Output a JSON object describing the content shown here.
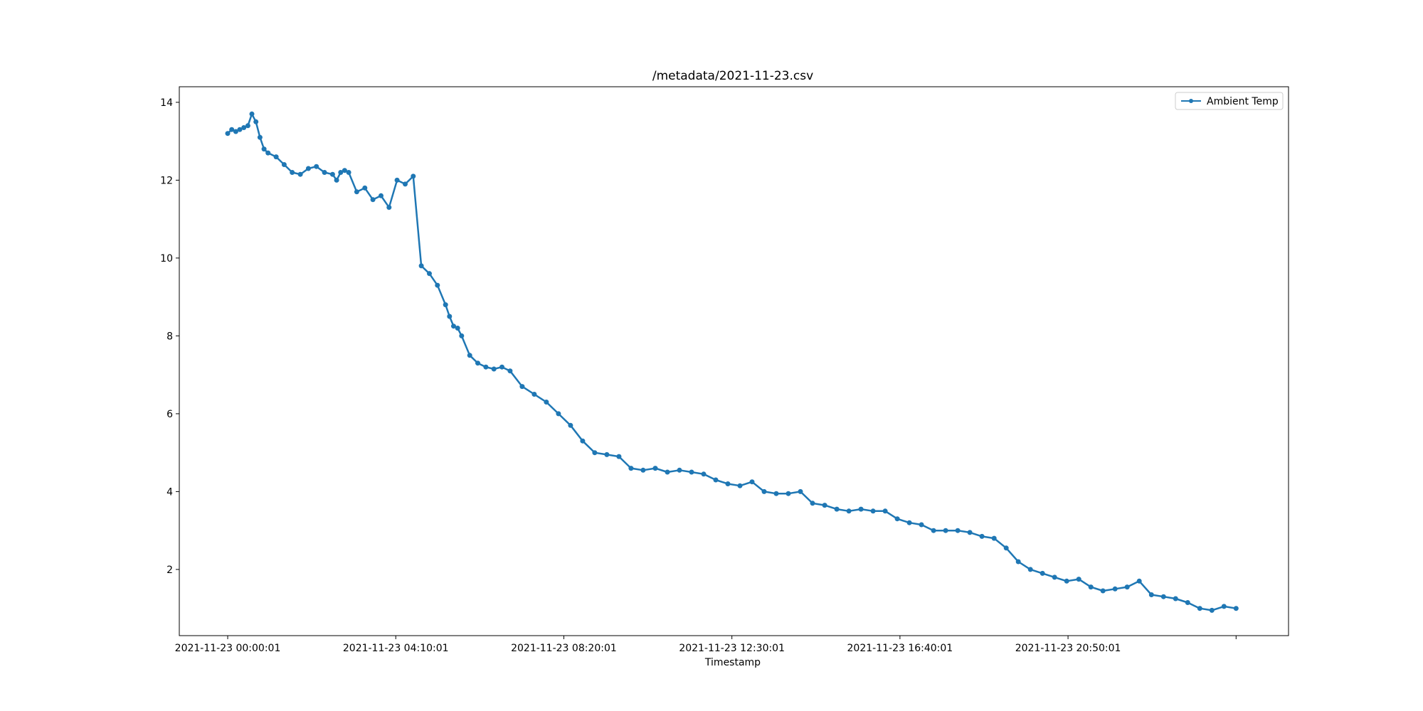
{
  "chart_data": {
    "type": "line",
    "title": "/metadata/2021-11-23.csv",
    "xlabel": "Timestamp",
    "ylabel": "",
    "x_tick_labels": [
      "2021-11-23 00:00:01",
      "2021-11-23 04:10:01",
      "2021-11-23 08:20:01",
      "2021-11-23 12:30:01",
      "2021-11-23 16:40:01",
      "2021-11-23 20:50:01"
    ],
    "y_ticks": [
      2,
      4,
      6,
      8,
      10,
      12,
      14
    ],
    "ylim": [
      0.3,
      14.4
    ],
    "xlim_hours": [
      -1.2,
      26.3
    ],
    "grid": false,
    "legend_position": "top-right",
    "colors": {
      "series": "#1f77b4"
    },
    "series": [
      {
        "name": "Ambient Temp",
        "marker": "dot",
        "x_hours": [
          0.0,
          0.1,
          0.2,
          0.3,
          0.4,
          0.5,
          0.6,
          0.7,
          0.8,
          0.9,
          1.0,
          1.2,
          1.4,
          1.6,
          1.8,
          2.0,
          2.2,
          2.4,
          2.6,
          2.7,
          2.8,
          2.9,
          3.0,
          3.2,
          3.4,
          3.6,
          3.8,
          4.0,
          4.2,
          4.4,
          4.6,
          4.8,
          5.0,
          5.2,
          5.4,
          5.5,
          5.6,
          5.7,
          5.8,
          6.0,
          6.2,
          6.4,
          6.6,
          6.8,
          7.0,
          7.3,
          7.6,
          7.9,
          8.2,
          8.5,
          8.8,
          9.1,
          9.4,
          9.7,
          10.0,
          10.3,
          10.6,
          10.9,
          11.2,
          11.5,
          11.8,
          12.1,
          12.4,
          12.7,
          13.0,
          13.3,
          13.6,
          13.9,
          14.2,
          14.5,
          14.8,
          15.1,
          15.4,
          15.7,
          16.0,
          16.3,
          16.6,
          16.9,
          17.2,
          17.5,
          17.8,
          18.1,
          18.4,
          18.7,
          19.0,
          19.3,
          19.6,
          19.9,
          20.2,
          20.5,
          20.8,
          21.1,
          21.4,
          21.7,
          22.0,
          22.3,
          22.6,
          22.9,
          23.2,
          23.5,
          23.8,
          24.1,
          24.4,
          24.7,
          25.0
        ],
        "y": [
          13.2,
          13.3,
          13.25,
          13.3,
          13.35,
          13.4,
          13.7,
          13.5,
          13.1,
          12.8,
          12.7,
          12.6,
          12.4,
          12.2,
          12.15,
          12.3,
          12.35,
          12.2,
          12.15,
          12.0,
          12.2,
          12.25,
          12.2,
          11.7,
          11.8,
          11.5,
          11.6,
          11.3,
          12.0,
          11.9,
          12.1,
          9.8,
          9.6,
          9.3,
          8.8,
          8.5,
          8.25,
          8.2,
          8.0,
          7.5,
          7.3,
          7.2,
          7.15,
          7.2,
          7.1,
          6.7,
          6.5,
          6.3,
          6.0,
          5.7,
          5.3,
          5.0,
          4.95,
          4.9,
          4.6,
          4.55,
          4.6,
          4.5,
          4.55,
          4.5,
          4.45,
          4.3,
          4.2,
          4.15,
          4.25,
          4.0,
          3.95,
          3.95,
          4.0,
          3.7,
          3.65,
          3.55,
          3.5,
          3.55,
          3.5,
          3.5,
          3.3,
          3.2,
          3.15,
          3.0,
          3.0,
          3.0,
          2.95,
          2.85,
          2.8,
          2.55,
          2.2,
          2.0,
          1.9,
          1.8,
          1.7,
          1.75,
          1.55,
          1.45,
          1.5,
          1.55,
          1.7,
          1.35,
          1.3,
          1.25,
          1.15,
          1.0,
          0.95,
          1.05,
          1.0
        ]
      }
    ]
  }
}
